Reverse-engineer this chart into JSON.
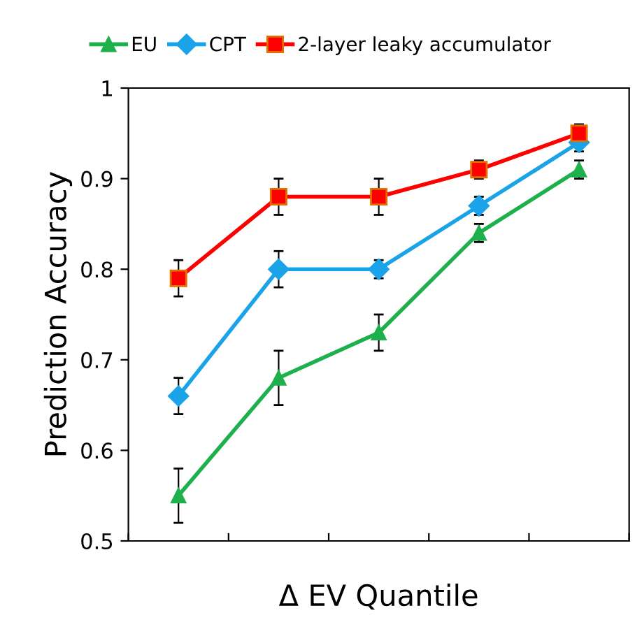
{
  "chart_data": {
    "type": "line",
    "xlabel": "Δ EV Quantile",
    "ylabel": "Prediction Accuracy",
    "categories": [
      null,
      null,
      null,
      null,
      null
    ],
    "series": [
      {
        "name": "EU",
        "color": "#1db04c",
        "marker": "triangle",
        "values": [
          0.55,
          0.68,
          0.73,
          0.84,
          0.91
        ],
        "errors": [
          0.03,
          0.03,
          0.02,
          0.01,
          0.01
        ]
      },
      {
        "name": "CPT",
        "color": "#1aa3e8",
        "marker": "diamond",
        "values": [
          0.66,
          0.8,
          0.8,
          0.87,
          0.94
        ],
        "errors": [
          0.02,
          0.02,
          0.01,
          0.01,
          0.01
        ]
      },
      {
        "name": "2-layer leaky accumulator",
        "color": "#ff0000",
        "marker": "square",
        "values": [
          0.79,
          0.88,
          0.88,
          0.91,
          0.95
        ],
        "errors": [
          0.02,
          0.02,
          0.02,
          0.01,
          0.01
        ]
      }
    ],
    "ylim": [
      0.5,
      1
    ],
    "yticks": [
      0.5,
      0.6,
      0.7,
      0.8,
      0.9,
      1
    ],
    "grid": false,
    "legend": "top",
    "tick_labels": "y",
    "line_style": "solid"
  }
}
